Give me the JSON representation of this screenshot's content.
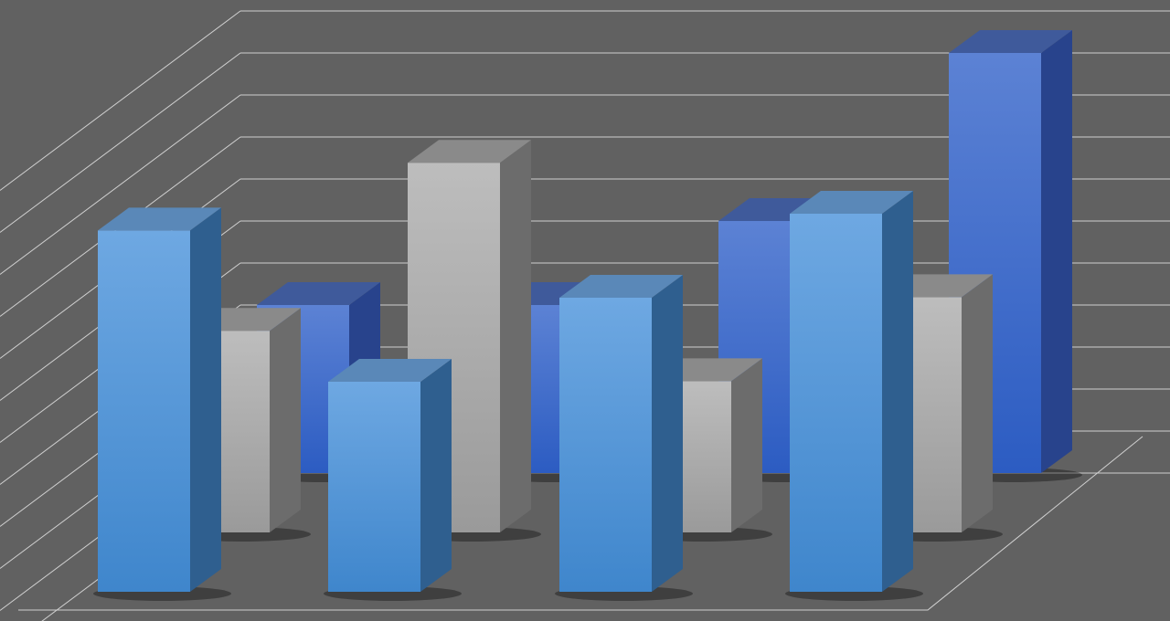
{
  "chart_data": {
    "type": "bar",
    "variant": "3d-clustered-depth",
    "title": "",
    "xlabel": "",
    "ylabel": "",
    "categories": [
      "",
      "",
      "",
      ""
    ],
    "ylim": [
      0,
      11
    ],
    "grid": true,
    "legend": "none",
    "background_color": "#616161",
    "gridline_color": "#d0d0d0",
    "series": [
      {
        "values": [
          4.0,
          4.0,
          6.0,
          10.0
        ],
        "color": "#3d68c8",
        "row": "back"
      },
      {
        "values": [
          4.8,
          8.8,
          3.6,
          5.6
        ],
        "color": "#aaaaaa",
        "row": "middle"
      },
      {
        "values": [
          8.6,
          5.0,
          7.0,
          9.0
        ],
        "color": "#559ad8",
        "row": "front"
      }
    ]
  }
}
